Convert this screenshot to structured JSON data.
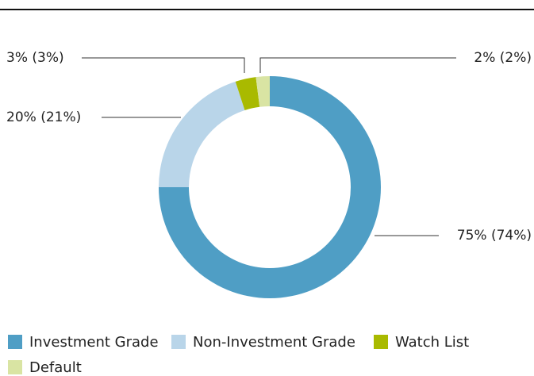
{
  "chart_data": {
    "type": "donut",
    "categories": [
      "Investment Grade",
      "Non-Investment Grade",
      "Watch List",
      "Default"
    ],
    "values": [
      75,
      20,
      3,
      2
    ],
    "value_labels": [
      "75% (74%)",
      "20% (21%)",
      "3% (3%)",
      "2% (2%)"
    ],
    "colors": [
      "#4f9ec5",
      "#b9d5e9",
      "#a9ba00",
      "#d9e4a3"
    ],
    "legend": "bottom"
  }
}
